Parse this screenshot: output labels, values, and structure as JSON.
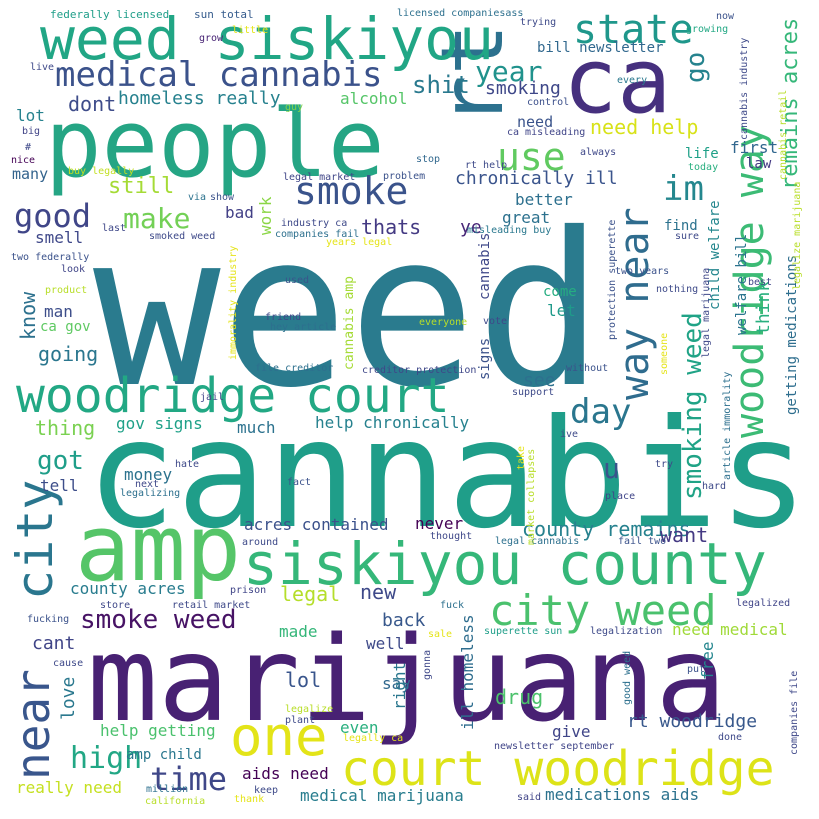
{
  "cloud": {
    "words": [
      {
        "text": "weed",
        "color": "#2a7b8e"
      },
      {
        "text": "cannabis",
        "color": "#1f9e89"
      },
      {
        "text": "marijuana",
        "color": "#482173"
      },
      {
        "text": "people",
        "color": "#25a584"
      },
      {
        "text": "amp",
        "color": "#55c568"
      },
      {
        "text": "ca",
        "color": "#46307e"
      },
      {
        "text": "rt",
        "color": "#2c718e"
      },
      {
        "text": "weed siskiyou",
        "color": "#21a685"
      },
      {
        "text": "siskiyou county",
        "color": "#35b779"
      },
      {
        "text": "woodridge court",
        "color": "#22a884"
      },
      {
        "text": "court woodridge",
        "color": "#dde318"
      },
      {
        "text": "city",
        "color": "#2a768e"
      },
      {
        "text": "one",
        "color": "#e3e418"
      },
      {
        "text": "near",
        "color": "#39568c"
      },
      {
        "text": "city weed",
        "color": "#4ac16d"
      },
      {
        "text": "way near",
        "color": "#2f6c8e"
      },
      {
        "text": "woodridge way",
        "color": "#3cbb75"
      },
      {
        "text": "medical cannabis",
        "color": "#3b528b"
      },
      {
        "text": "state",
        "color": "#1f978b"
      },
      {
        "text": "smoke",
        "color": "#3a538b"
      },
      {
        "text": "year",
        "color": "#20928c"
      },
      {
        "text": "use",
        "color": "#60ca60"
      },
      {
        "text": "im",
        "color": "#24878e"
      },
      {
        "text": "good",
        "color": "#404688"
      },
      {
        "text": "make",
        "color": "#73d056"
      },
      {
        "text": "smoking weed",
        "color": "#20a386"
      },
      {
        "text": "day",
        "color": "#2a768e"
      },
      {
        "text": "time",
        "color": "#3f4788"
      },
      {
        "text": "high",
        "color": "#22a785"
      },
      {
        "text": "smoke weed",
        "color": "#471365"
      },
      {
        "text": "go",
        "color": "#25838e"
      },
      {
        "text": "remains acres",
        "color": "#35b779"
      },
      {
        "text": "think",
        "color": "#29af7f"
      },
      {
        "text": "shit",
        "color": "#29798e"
      },
      {
        "text": "dont",
        "color": "#3e4c8a"
      },
      {
        "text": "homeless really",
        "color": "#26818e"
      },
      {
        "text": "alcohol",
        "color": "#55c568"
      },
      {
        "text": "smoking",
        "color": "#3f4889"
      },
      {
        "text": "need help",
        "color": "#d8e219"
      },
      {
        "text": "still",
        "color": "#a5db36"
      },
      {
        "text": "chronically ill",
        "color": "#3a548c"
      },
      {
        "text": "thats",
        "color": "#443a83"
      },
      {
        "text": "great",
        "color": "#2c718e"
      },
      {
        "text": "better",
        "color": "#2d708e"
      },
      {
        "text": "lot",
        "color": "#26828e"
      },
      {
        "text": "many",
        "color": "#33638d"
      },
      {
        "text": "bad",
        "color": "#424086"
      },
      {
        "text": "work",
        "color": "#8bd646"
      },
      {
        "text": "smell",
        "color": "#3f4889"
      },
      {
        "text": "know",
        "color": "#2d718e"
      },
      {
        "text": "man",
        "color": "#3d4e8a"
      },
      {
        "text": "ca gov",
        "color": "#5ec962"
      },
      {
        "text": "going",
        "color": "#2a768e"
      },
      {
        "text": "thing",
        "color": "#7ad151"
      },
      {
        "text": "got",
        "color": "#1f9e89"
      },
      {
        "text": "gov signs",
        "color": "#1fa188"
      },
      {
        "text": "much",
        "color": "#2c728e"
      },
      {
        "text": "help chronically",
        "color": "#26818e"
      },
      {
        "text": "see",
        "color": "#2d708e"
      },
      {
        "text": "u",
        "color": "#3a548c"
      },
      {
        "text": "tell",
        "color": "#3d4e8a"
      },
      {
        "text": "money",
        "color": "#2c728e"
      },
      {
        "text": "acres contained",
        "color": "#3b518b"
      },
      {
        "text": "never",
        "color": "#440154"
      },
      {
        "text": "county remains",
        "color": "#26818e"
      },
      {
        "text": "want",
        "color": "#443983"
      },
      {
        "text": "county acres",
        "color": "#287c8e"
      },
      {
        "text": "legal",
        "color": "#b5de2b"
      },
      {
        "text": "new",
        "color": "#3e4989"
      },
      {
        "text": "back",
        "color": "#38588c"
      },
      {
        "text": "made",
        "color": "#34b679"
      },
      {
        "text": "cant",
        "color": "#404588"
      },
      {
        "text": "lol",
        "color": "#39558c"
      },
      {
        "text": "love",
        "color": "#2a788e"
      },
      {
        "text": "well",
        "color": "#3e4a89"
      },
      {
        "text": "say",
        "color": "#31688e"
      },
      {
        "text": "right",
        "color": "#2a778e"
      },
      {
        "text": "ill homeless",
        "color": "#2e6d8e"
      },
      {
        "text": "drug",
        "color": "#4cc26c"
      },
      {
        "text": "give",
        "color": "#404588"
      },
      {
        "text": "rt woodridge",
        "color": "#38588c"
      },
      {
        "text": "free",
        "color": "#24868e"
      },
      {
        "text": "need medical",
        "color": "#a0da39"
      },
      {
        "text": "help getting",
        "color": "#4ac16d"
      },
      {
        "text": "amp child",
        "color": "#2a778e"
      },
      {
        "text": "aids need",
        "color": "#440154"
      },
      {
        "text": "even",
        "color": "#2ab07f"
      },
      {
        "text": "really need",
        "color": "#c5e021"
      },
      {
        "text": "medical marijuana",
        "color": "#287d8e"
      },
      {
        "text": "medications aids",
        "color": "#2c728e"
      },
      {
        "text": "need",
        "color": "#3a538b"
      },
      {
        "text": "come",
        "color": "#26ad81"
      },
      {
        "text": "let",
        "color": "#1f9a8a"
      },
      {
        "text": "ye",
        "color": "#482677"
      },
      {
        "text": "cannabis",
        "color": "#3f4889"
      },
      {
        "text": "signs",
        "color": "#3b528b"
      },
      {
        "text": "find",
        "color": "#2c728e"
      },
      {
        "text": "life",
        "color": "#1fa088"
      },
      {
        "text": "first",
        "color": "#31678e"
      },
      {
        "text": "law",
        "color": "#443983"
      },
      {
        "text": "bill newsletter",
        "color": "#31688e"
      },
      {
        "text": "child welfare",
        "color": "#24878e"
      },
      {
        "text": "welfare bill",
        "color": "#2b748e"
      },
      {
        "text": "getting medications",
        "color": "#2e6e8e"
      },
      {
        "text": "cannabis amp",
        "color": "#a5db36"
      },
      {
        "text": "federally licensed",
        "color": "#1f9e89"
      },
      {
        "text": "sun total",
        "color": "#365c8d"
      },
      {
        "text": "licensed companiesass",
        "color": "#2d708e"
      },
      {
        "text": "trying",
        "color": "#3e4a89"
      },
      {
        "text": "now",
        "color": "#3b528b"
      },
      {
        "text": "growing",
        "color": "#22a884"
      },
      {
        "text": "grow",
        "color": "#482475"
      },
      {
        "text": "live",
        "color": "#3e4989"
      },
      {
        "text": "big",
        "color": "#414487"
      },
      {
        "text": "guy",
        "color": "#7fd34e"
      },
      {
        "text": "control",
        "color": "#3c508b"
      },
      {
        "text": "every",
        "color": "#2a788e"
      },
      {
        "text": "ca misleading",
        "color": "#404588"
      },
      {
        "text": "nice",
        "color": "#440154"
      },
      {
        "text": "stop",
        "color": "#31688e"
      },
      {
        "text": "always",
        "color": "#3f4889"
      },
      {
        "text": "problem",
        "color": "#3b528b"
      },
      {
        "text": "legal market",
        "color": "#404688"
      },
      {
        "text": "rt help",
        "color": "#3e4a89"
      },
      {
        "text": "buy legally",
        "color": "#c2df23"
      },
      {
        "text": "via",
        "color": "#2c728e"
      },
      {
        "text": "show",
        "color": "#3b528b"
      },
      {
        "text": "industry ca",
        "color": "#3e4989"
      },
      {
        "text": "companies fail",
        "color": "#2d708e"
      },
      {
        "text": "misleading buy",
        "color": "#2a788e"
      },
      {
        "text": "years legal",
        "color": "#e5e419"
      },
      {
        "text": "smoked weed",
        "color": "#3e4989"
      },
      {
        "text": "last",
        "color": "#3f4889"
      },
      {
        "text": "two federally",
        "color": "#3b528b"
      },
      {
        "text": "look",
        "color": "#404588"
      },
      {
        "text": "product",
        "color": "#b8de29"
      },
      {
        "text": "used",
        "color": "#39568c"
      },
      {
        "text": "friend",
        "color": "#3e4989"
      },
      {
        "text": "hey article",
        "color": "#2d708e"
      },
      {
        "text": "everyone",
        "color": "#b8de29"
      },
      {
        "text": "vote",
        "color": "#3f4889"
      },
      {
        "text": "two years",
        "color": "#3b528b"
      },
      {
        "text": "nothing",
        "color": "#3e4a89"
      },
      {
        "text": "best",
        "color": "#404588"
      },
      {
        "text": "today",
        "color": "#29af7f"
      },
      {
        "text": "sure",
        "color": "#3e4989"
      },
      {
        "text": "file creditor",
        "color": "#2d708e"
      },
      {
        "text": "creditor protection",
        "color": "#3f4889"
      },
      {
        "text": "without",
        "color": "#3b528b"
      },
      {
        "text": "support",
        "color": "#3e4a89"
      },
      {
        "text": "jail",
        "color": "#404588"
      },
      {
        "text": "hate",
        "color": "#3e4989"
      },
      {
        "text": "next",
        "color": "#3f4889"
      },
      {
        "text": "legalizing",
        "color": "#2d708e"
      },
      {
        "text": "fact",
        "color": "#3b528b"
      },
      {
        "text": "try",
        "color": "#3e4a89"
      },
      {
        "text": "place",
        "color": "#404588"
      },
      {
        "text": "hard",
        "color": "#3e4989"
      },
      {
        "text": "thought",
        "color": "#3f4889"
      },
      {
        "text": "legal cannabis",
        "color": "#2d708e"
      },
      {
        "text": "fail two",
        "color": "#3b528b"
      },
      {
        "text": "around",
        "color": "#3e4a89"
      },
      {
        "text": "prison",
        "color": "#404588"
      },
      {
        "text": "retail market",
        "color": "#3e4989"
      },
      {
        "text": "store",
        "color": "#3f4889"
      },
      {
        "text": "fuck",
        "color": "#2d708e"
      },
      {
        "text": "fucking",
        "color": "#3b528b"
      },
      {
        "text": "sale",
        "color": "#e5e419"
      },
      {
        "text": "superette sun",
        "color": "#1f9e89"
      },
      {
        "text": "legalization",
        "color": "#3e4a89"
      },
      {
        "text": "legalized",
        "color": "#404588"
      },
      {
        "text": "cause",
        "color": "#3e4989"
      },
      {
        "text": "gonna",
        "color": "#3f4889"
      },
      {
        "text": "good weed",
        "color": "#2d708e"
      },
      {
        "text": "put",
        "color": "#3b528b"
      },
      {
        "text": "legalize",
        "color": "#b8de29"
      },
      {
        "text": "plant",
        "color": "#3e4a89"
      },
      {
        "text": "legally ca",
        "color": "#e5e419"
      },
      {
        "text": "newsletter september",
        "color": "#404588"
      },
      {
        "text": "done",
        "color": "#3e4989"
      },
      {
        "text": "companies file",
        "color": "#3f4889"
      },
      {
        "text": "million",
        "color": "#2d708e"
      },
      {
        "text": "california",
        "color": "#b8de29"
      },
      {
        "text": "thank",
        "color": "#e5e419"
      },
      {
        "text": "keep",
        "color": "#3e4a89"
      },
      {
        "text": "said",
        "color": "#404588"
      },
      {
        "text": "cannabis retail",
        "color": "#b8de29"
      },
      {
        "text": "cannabis industry",
        "color": "#3e4989"
      },
      {
        "text": "legalize marijuana",
        "color": "#b8de29"
      },
      {
        "text": "legal marijuana",
        "color": "#3f4889"
      },
      {
        "text": "article immorality",
        "color": "#2d708e"
      },
      {
        "text": "immorality industry",
        "color": "#e5e419"
      },
      {
        "text": "protection superette",
        "color": "#3b528b"
      },
      {
        "text": "market collapses",
        "color": "#b8de29"
      },
      {
        "text": "someone",
        "color": "#e5e419"
      },
      {
        "text": "ive",
        "color": "#3e4a89"
      },
      {
        "text": "take",
        "color": "#e5e419"
      },
      {
        "text": "little",
        "color": "#e5e419"
      },
      {
        "text": "#",
        "color": "#3e4989"
      }
    ]
  }
}
